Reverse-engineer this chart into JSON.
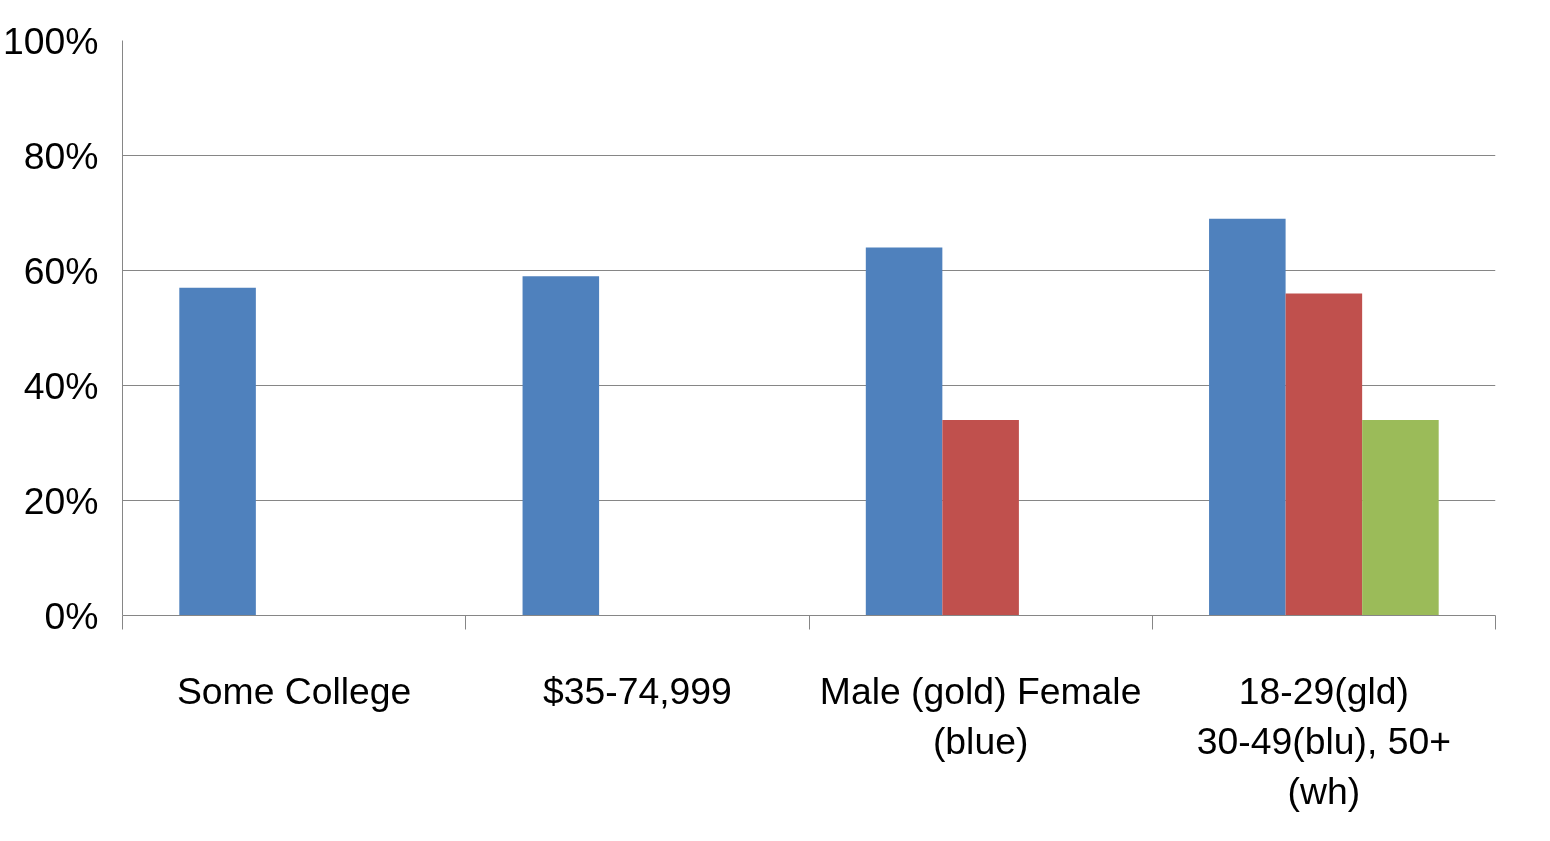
{
  "chart_data": {
    "type": "bar",
    "categories": [
      "Some College",
      "$35-74,999",
      "Male (gold) Female (blue)",
      "18-29(gld) 30-49(blu), 50+ (wh)"
    ],
    "series": [
      {
        "color": "#4f81bd",
        "values": [
          57,
          59,
          64,
          69
        ]
      },
      {
        "color": "#c0504d",
        "values": [
          null,
          null,
          34,
          56
        ]
      },
      {
        "color": "#9bbb59",
        "values": [
          null,
          null,
          null,
          34
        ]
      }
    ],
    "ylim": [
      0,
      100
    ],
    "yticks": [
      {
        "value": 0,
        "label": "0%"
      },
      {
        "value": 20,
        "label": "20%"
      },
      {
        "value": 40,
        "label": "40%"
      },
      {
        "value": 60,
        "label": "60%"
      },
      {
        "value": 80,
        "label": "80%"
      },
      {
        "value": 100,
        "label": "100%"
      }
    ],
    "grid": "y"
  }
}
